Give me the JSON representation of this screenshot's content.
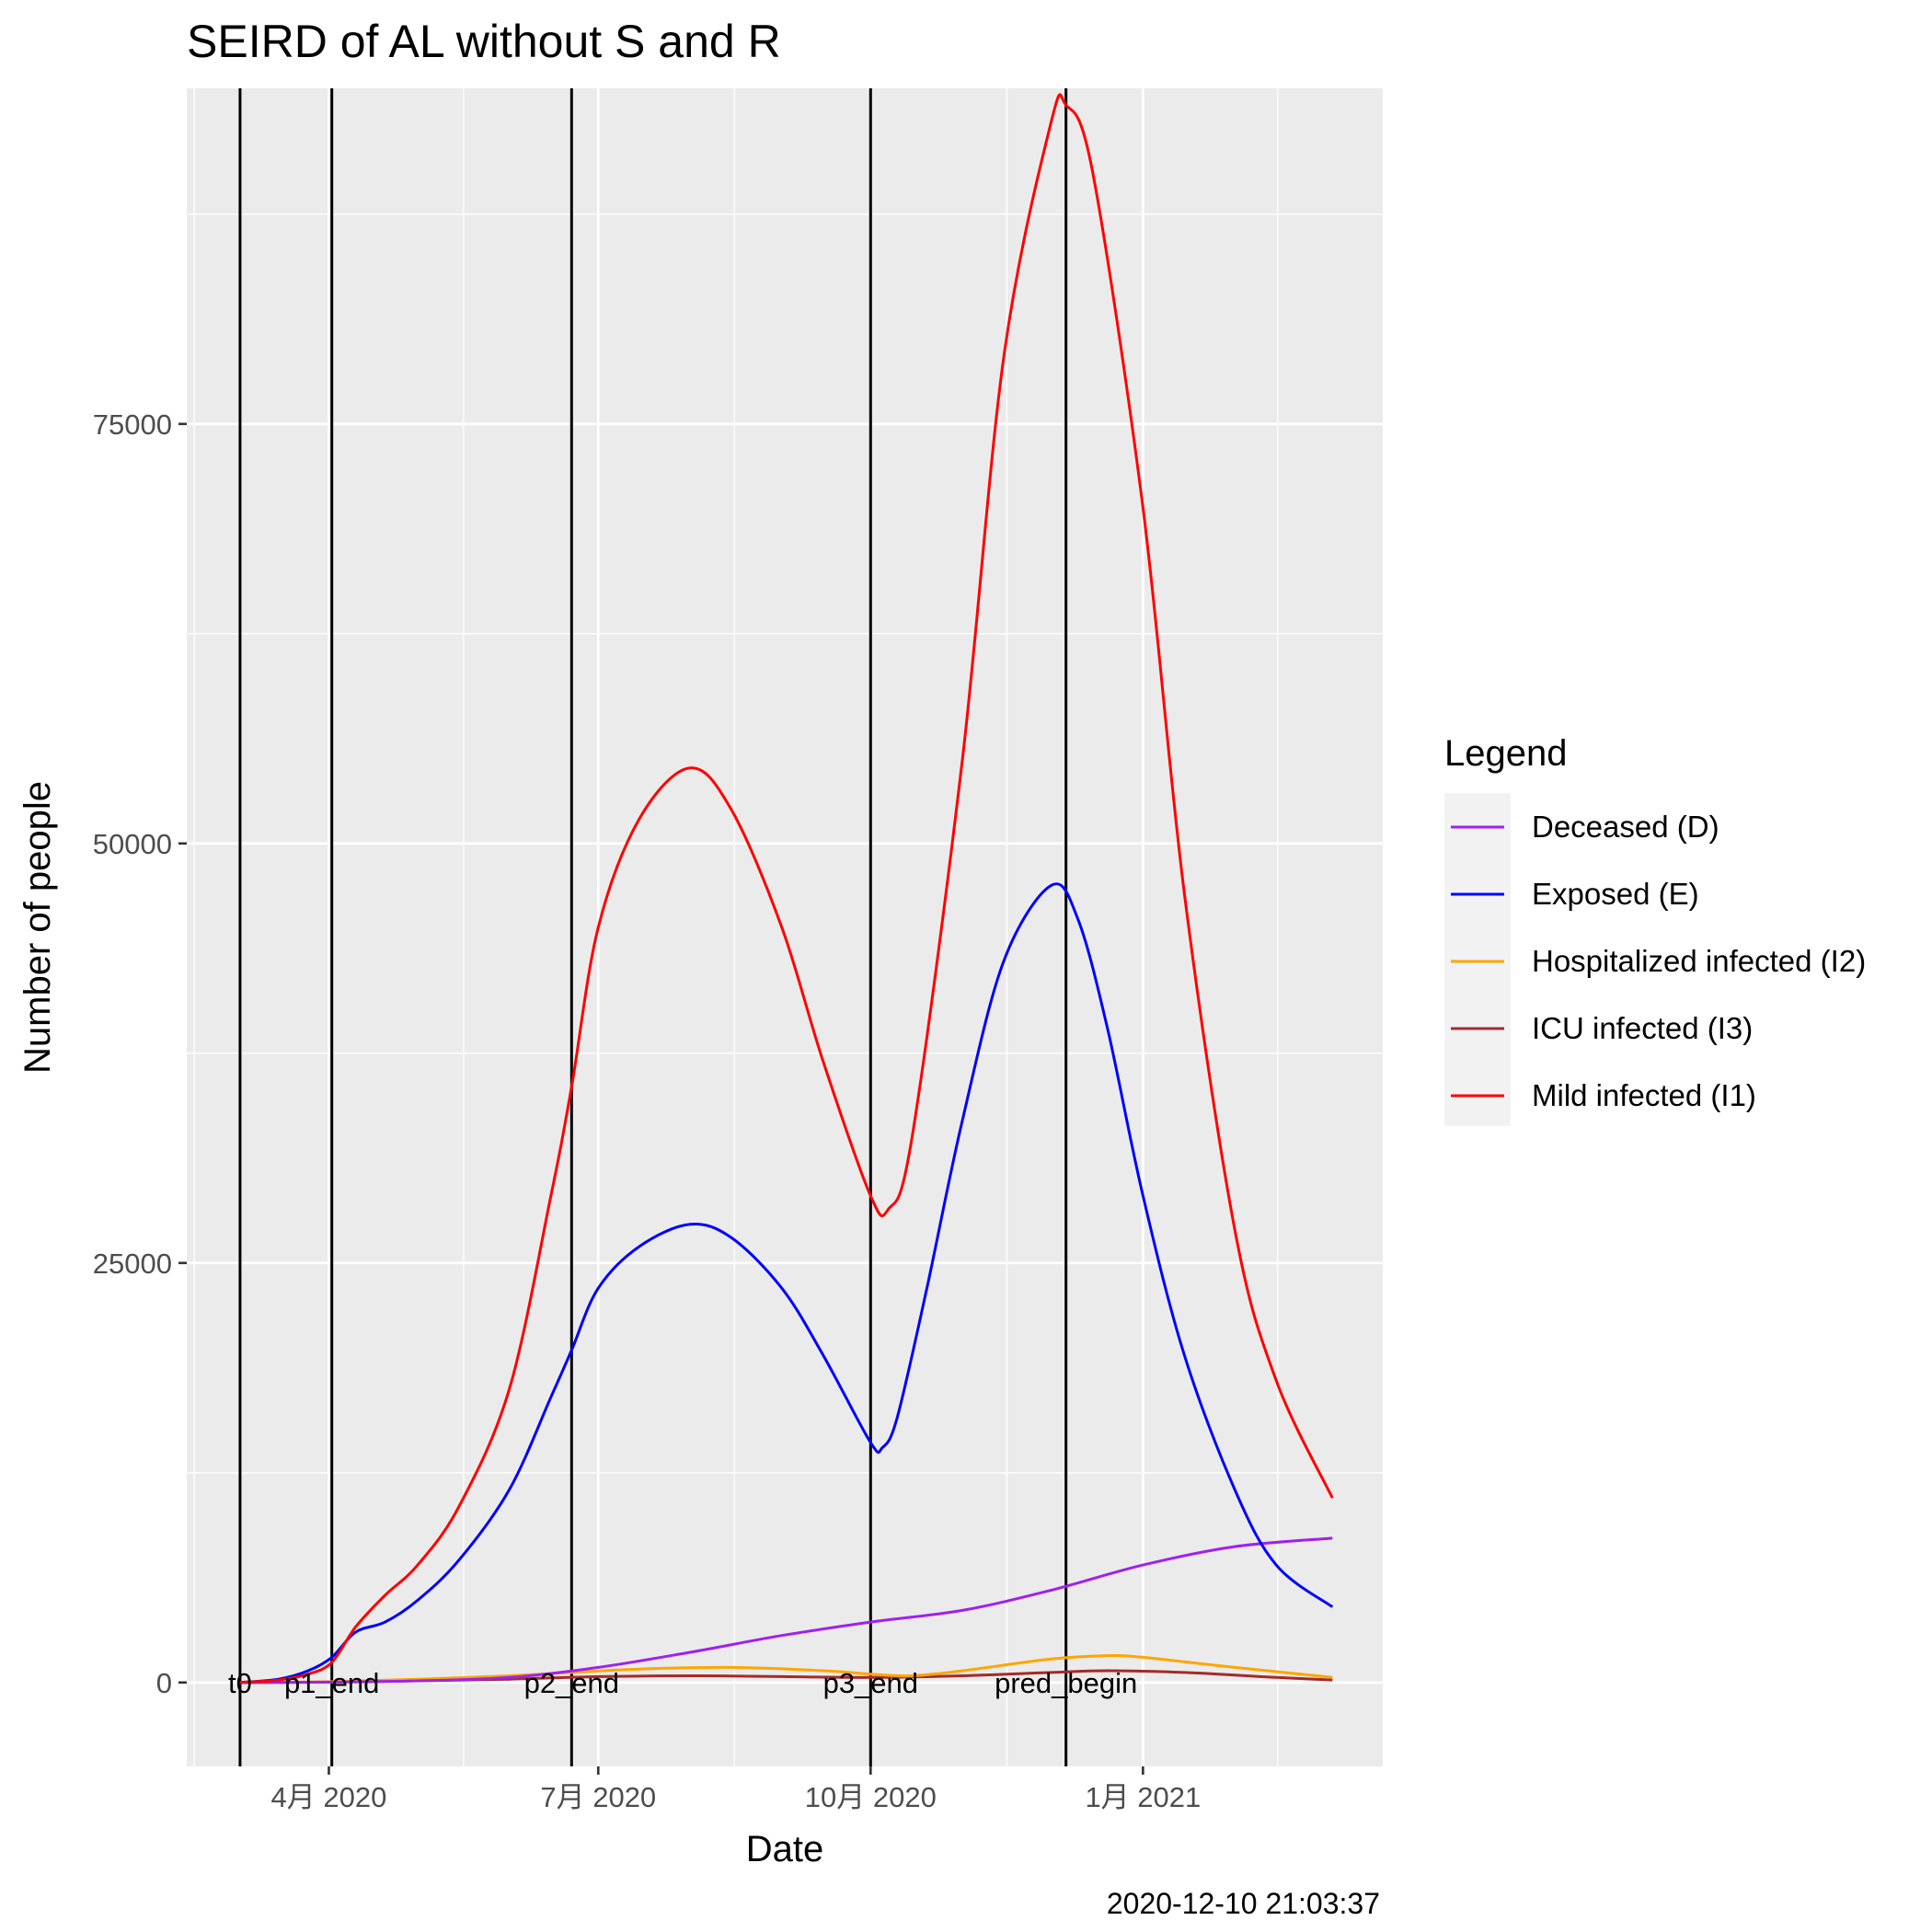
{
  "chart_data": {
    "type": "line",
    "title": "SEIRD of AL without S and R",
    "xlabel": "Date",
    "ylabel": "Number of people",
    "caption": "2020-12-10 21:03:37",
    "x_range": [
      "2020-02-13",
      "2021-03-23"
    ],
    "ylim": [
      -5000,
      95000
    ],
    "y_ticks": [
      0,
      25000,
      50000,
      75000
    ],
    "x_ticks": [
      {
        "date": "2020-04-01",
        "label": "4月 2020"
      },
      {
        "date": "2020-07-01",
        "label": "7月 2020"
      },
      {
        "date": "2020-10-01",
        "label": "10月 2020"
      },
      {
        "date": "2021-01-01",
        "label": "1月 2021"
      }
    ],
    "grid": true,
    "legend": {
      "title": "Legend",
      "position": "right"
    },
    "vlines": [
      {
        "date": "2020-03-02",
        "label": "t0"
      },
      {
        "date": "2020-04-02",
        "label": "p1_end"
      },
      {
        "date": "2020-06-22",
        "label": "p2_end"
      },
      {
        "date": "2020-10-01",
        "label": "p3_end"
      },
      {
        "date": "2020-12-06",
        "label": "pred_begin"
      }
    ],
    "series": [
      {
        "name": "Deceased (D)",
        "color": "#a020f0",
        "points": [
          [
            "2020-03-02",
            0
          ],
          [
            "2020-04-01",
            20
          ],
          [
            "2020-05-01",
            100
          ],
          [
            "2020-06-01",
            300
          ],
          [
            "2020-07-01",
            900
          ],
          [
            "2020-08-01",
            1800
          ],
          [
            "2020-09-01",
            2800
          ],
          [
            "2020-10-01",
            3600
          ],
          [
            "2020-11-01",
            4300
          ],
          [
            "2020-12-01",
            5500
          ],
          [
            "2021-01-01",
            7000
          ],
          [
            "2021-02-01",
            8100
          ],
          [
            "2021-03-06",
            8600
          ]
        ]
      },
      {
        "name": "Exposed (E)",
        "color": "#0000ff",
        "points": [
          [
            "2020-03-02",
            0
          ],
          [
            "2020-03-15",
            200
          ],
          [
            "2020-03-25",
            700
          ],
          [
            "2020-04-02",
            1500
          ],
          [
            "2020-04-10",
            3000
          ],
          [
            "2020-04-20",
            3600
          ],
          [
            "2020-05-01",
            4900
          ],
          [
            "2020-05-15",
            7300
          ],
          [
            "2020-06-01",
            11500
          ],
          [
            "2020-06-15",
            17000
          ],
          [
            "2020-06-22",
            19800
          ],
          [
            "2020-07-01",
            23500
          ],
          [
            "2020-07-15",
            26000
          ],
          [
            "2020-08-01",
            27300
          ],
          [
            "2020-08-15",
            26500
          ],
          [
            "2020-09-01",
            23500
          ],
          [
            "2020-09-15",
            19500
          ],
          [
            "2020-10-01",
            14300
          ],
          [
            "2020-10-05",
            14000
          ],
          [
            "2020-10-10",
            15800
          ],
          [
            "2020-10-20",
            23500
          ],
          [
            "2020-11-01",
            33500
          ],
          [
            "2020-11-15",
            43000
          ],
          [
            "2020-12-01",
            47500
          ],
          [
            "2020-12-10",
            45500
          ],
          [
            "2020-12-20",
            39000
          ],
          [
            "2021-01-01",
            29000
          ],
          [
            "2021-01-15",
            19500
          ],
          [
            "2021-02-01",
            11500
          ],
          [
            "2021-02-15",
            7000
          ],
          [
            "2021-03-06",
            4500
          ]
        ]
      },
      {
        "name": "Hospitalized infected (I2)",
        "color": "#ffa500",
        "points": [
          [
            "2020-03-02",
            0
          ],
          [
            "2020-04-01",
            50
          ],
          [
            "2020-05-01",
            200
          ],
          [
            "2020-06-01",
            400
          ],
          [
            "2020-06-22",
            600
          ],
          [
            "2020-07-15",
            800
          ],
          [
            "2020-08-15",
            900
          ],
          [
            "2020-09-15",
            700
          ],
          [
            "2020-10-01",
            500
          ],
          [
            "2020-10-15",
            400
          ],
          [
            "2020-11-01",
            700
          ],
          [
            "2020-12-01",
            1400
          ],
          [
            "2020-12-20",
            1600
          ],
          [
            "2021-01-01",
            1500
          ],
          [
            "2021-02-01",
            900
          ],
          [
            "2021-03-06",
            300
          ]
        ]
      },
      {
        "name": "ICU infected (I3)",
        "color": "#a52a2a",
        "points": [
          [
            "2020-03-02",
            0
          ],
          [
            "2020-04-01",
            20
          ],
          [
            "2020-05-01",
            100
          ],
          [
            "2020-06-01",
            200
          ],
          [
            "2020-07-01",
            350
          ],
          [
            "2020-08-01",
            400
          ],
          [
            "2020-09-01",
            350
          ],
          [
            "2020-10-01",
            300
          ],
          [
            "2020-11-01",
            400
          ],
          [
            "2020-12-01",
            600
          ],
          [
            "2020-12-20",
            700
          ],
          [
            "2021-01-15",
            600
          ],
          [
            "2021-02-15",
            300
          ],
          [
            "2021-03-06",
            150
          ]
        ]
      },
      {
        "name": "Mild infected (I1)",
        "color": "#ff0000",
        "points": [
          [
            "2020-03-02",
            0
          ],
          [
            "2020-03-15",
            150
          ],
          [
            "2020-03-25",
            500
          ],
          [
            "2020-04-02",
            1200
          ],
          [
            "2020-04-10",
            3300
          ],
          [
            "2020-04-20",
            5200
          ],
          [
            "2020-05-01",
            7000
          ],
          [
            "2020-05-15",
            10500
          ],
          [
            "2020-06-01",
            17500
          ],
          [
            "2020-06-15",
            29000
          ],
          [
            "2020-06-22",
            35500
          ],
          [
            "2020-07-01",
            45000
          ],
          [
            "2020-07-15",
            51500
          ],
          [
            "2020-08-01",
            54500
          ],
          [
            "2020-08-15",
            52000
          ],
          [
            "2020-09-01",
            45000
          ],
          [
            "2020-09-15",
            37000
          ],
          [
            "2020-10-01",
            29000
          ],
          [
            "2020-10-07",
            28200
          ],
          [
            "2020-10-15",
            32500
          ],
          [
            "2020-11-01",
            55000
          ],
          [
            "2020-11-15",
            79000
          ],
          [
            "2020-12-01",
            93000
          ],
          [
            "2020-12-06",
            94000
          ],
          [
            "2020-12-15",
            90000
          ],
          [
            "2021-01-01",
            70000
          ],
          [
            "2021-01-15",
            47000
          ],
          [
            "2021-02-01",
            27000
          ],
          [
            "2021-02-15",
            18000
          ],
          [
            "2021-03-06",
            11000
          ]
        ]
      }
    ]
  }
}
